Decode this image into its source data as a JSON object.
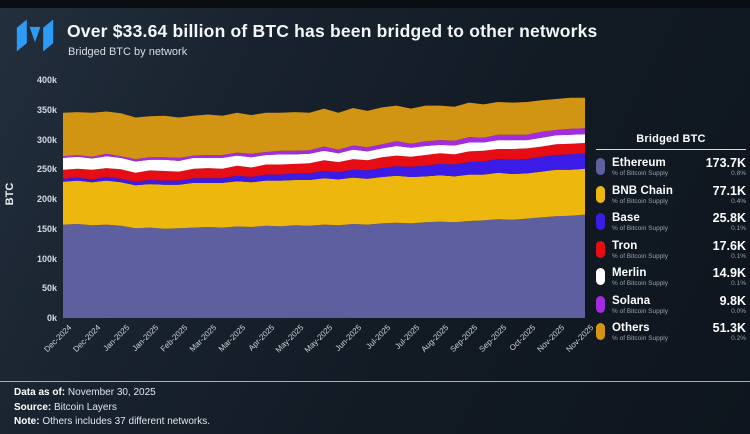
{
  "header": {
    "title": "Over $33.64 billion of BTC has been bridged to other networks",
    "subtitle": "Bridged BTC by network"
  },
  "chart": {
    "y_axis_label": "BTC",
    "y_ticks": [
      "400k",
      "350k",
      "300k",
      "250k",
      "200k",
      "150k",
      "100k",
      "50k",
      "0k"
    ],
    "x_ticks": [
      "Dec-2024",
      "Dec-2024",
      "Jan-2025",
      "Jan-2025",
      "Feb-2025",
      "Mar-2025",
      "Mar-2025",
      "Apr-2025",
      "May-2025",
      "May-2025",
      "Jun-2025",
      "Jul-2025",
      "Jul-2025",
      "Aug-2025",
      "Sep-2025",
      "Sep-2025",
      "Oct-2025",
      "Nov-2025",
      "Nov-2025"
    ]
  },
  "chart_data": {
    "type": "area",
    "stacked": true,
    "title": "Bridged BTC by network",
    "xlabel": "",
    "ylabel": "BTC",
    "ylim": [
      0,
      400
    ],
    "y_unit": "thousands of BTC",
    "grid": false,
    "legend_position": "right",
    "x_tick_labels": [
      "Dec-2024",
      "Dec-2024",
      "Jan-2025",
      "Jan-2025",
      "Feb-2025",
      "Mar-2025",
      "Mar-2025",
      "Apr-2025",
      "May-2025",
      "May-2025",
      "Jun-2025",
      "Jul-2025",
      "Jul-2025",
      "Aug-2025",
      "Sep-2025",
      "Sep-2025",
      "Oct-2025",
      "Nov-2025",
      "Nov-2025"
    ],
    "series": [
      {
        "name": "Ethereum",
        "color": "#5e5f9e",
        "latest": "173.7K",
        "pct_of_supply": "0.8%",
        "values": [
          157,
          158,
          156,
          157,
          155,
          151,
          152,
          150,
          151,
          152,
          153,
          152,
          154,
          153,
          155,
          154,
          156,
          155,
          157,
          156,
          158,
          157,
          159,
          160,
          159,
          161,
          162,
          161,
          163,
          164,
          166,
          165,
          167,
          169,
          171,
          172,
          173.7
        ]
      },
      {
        "name": "BNB Chain",
        "color": "#eeb70d",
        "latest": "77.1K",
        "pct_of_supply": "0.4%",
        "values": [
          72,
          73,
          72,
          74,
          73,
          72,
          73,
          74,
          73,
          75,
          74,
          75,
          76,
          75,
          76,
          77,
          76,
          77,
          78,
          77,
          78,
          77,
          78,
          79,
          78,
          77,
          78,
          77,
          78,
          77,
          78,
          77,
          76,
          77,
          78,
          77,
          77.1
        ]
      },
      {
        "name": "Base",
        "color": "#3a1ce6",
        "latest": "25.8K",
        "pct_of_supply": "0.1%",
        "values": [
          5,
          5,
          5,
          6,
          6,
          6,
          7,
          7,
          7,
          8,
          8,
          8,
          9,
          9,
          10,
          10,
          11,
          11,
          12,
          12,
          13,
          14,
          15,
          16,
          17,
          18,
          19,
          20,
          21,
          22,
          23,
          24,
          24,
          25,
          25,
          26,
          25.8
        ]
      },
      {
        "name": "Tron",
        "color": "#e60d15",
        "latest": "17.6K",
        "pct_of_supply": "0.1%",
        "values": [
          15,
          15,
          16,
          15,
          16,
          15,
          16,
          16,
          15,
          16,
          17,
          16,
          17,
          16,
          17,
          17,
          16,
          17,
          18,
          17,
          18,
          17,
          18,
          18,
          17,
          18,
          18,
          17,
          18,
          18,
          17,
          18,
          18,
          17,
          18,
          18,
          17.6
        ]
      },
      {
        "name": "Merlin",
        "color": "#ffffff",
        "latest": "14.9K",
        "pct_of_supply": "0.1%",
        "values": [
          20,
          20,
          19,
          20,
          19,
          19,
          18,
          19,
          18,
          18,
          17,
          18,
          17,
          17,
          16,
          17,
          16,
          16,
          16,
          15,
          16,
          15,
          15,
          16,
          15,
          15,
          14,
          15,
          15,
          14,
          15,
          15,
          14,
          15,
          15,
          15,
          14.9
        ]
      },
      {
        "name": "Solana",
        "color": "#a42be0",
        "latest": "9.8K",
        "pct_of_supply": "0.0%",
        "values": [
          3,
          3,
          3,
          4,
          3,
          4,
          4,
          4,
          5,
          4,
          5,
          5,
          5,
          6,
          5,
          6,
          6,
          6,
          7,
          6,
          7,
          7,
          7,
          8,
          7,
          8,
          8,
          8,
          9,
          8,
          9,
          9,
          9,
          10,
          9,
          10,
          9.8
        ]
      },
      {
        "name": "Others",
        "color": "#d29413",
        "latest": "51.3K",
        "pct_of_supply": "0.2%",
        "values": [
          73,
          72,
          74,
          71,
          72,
          70,
          69,
          70,
          68,
          67,
          68,
          66,
          67,
          65,
          66,
          64,
          65,
          63,
          64,
          62,
          63,
          61,
          62,
          60,
          59,
          60,
          58,
          57,
          58,
          56,
          55,
          54,
          55,
          53,
          52,
          52,
          51.3
        ]
      }
    ]
  },
  "legend": {
    "title": "Bridged BTC",
    "sub_label": "% of Bitcoin Supply",
    "items": [
      {
        "name": "Ethereum",
        "color": "#5e5f9e",
        "value": "173.7K",
        "pct": "0.8%"
      },
      {
        "name": "BNB Chain",
        "color": "#eeb70d",
        "value": "77.1K",
        "pct": "0.4%"
      },
      {
        "name": "Base",
        "color": "#3a1ce6",
        "value": "25.8K",
        "pct": "0.1%"
      },
      {
        "name": "Tron",
        "color": "#e60d15",
        "value": "17.6K",
        "pct": "0.1%"
      },
      {
        "name": "Merlin",
        "color": "#ffffff",
        "value": "14.9K",
        "pct": "0.1%"
      },
      {
        "name": "Solana",
        "color": "#a42be0",
        "value": "9.8K",
        "pct": "0.0%"
      },
      {
        "name": "Others",
        "color": "#d29413",
        "value": "51.3K",
        "pct": "0.2%"
      }
    ]
  },
  "footer": {
    "data_as_of_label": "Data as of:",
    "data_as_of": "November 30, 2025",
    "source_label": "Source:",
    "source": "Bitcoin Layers",
    "note_label": "Note:",
    "note": "Others includes 37 different networks."
  },
  "brand": {
    "logo_color": "#2e9cf6"
  }
}
